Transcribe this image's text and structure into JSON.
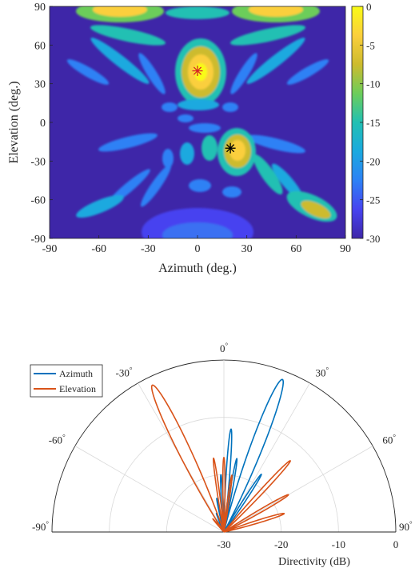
{
  "chart_data": [
    {
      "type": "heatmap",
      "xlabel": "Azimuth (deg.)",
      "ylabel": "Elevation (deg.)",
      "xlim": [
        -90,
        90
      ],
      "ylim": [
        -90,
        90
      ],
      "xticks": [
        "-90",
        "-60",
        "-30",
        "0",
        "30",
        "60",
        "90"
      ],
      "yticks": [
        "90",
        "60",
        "30",
        "0",
        "-30",
        "-60",
        "-90"
      ],
      "colorbar": {
        "range": [
          -30,
          0
        ],
        "ticks": [
          "0",
          "-5",
          "-10",
          "-15",
          "-20",
          "-25",
          "-30"
        ]
      },
      "colormap": [
        "#3e26a8",
        "#4743f0",
        "#2d81f5",
        "#1aa9df",
        "#21c0b3",
        "#6ccd5a",
        "#cdbb2e",
        "#fbcf3c",
        "#f9fb15"
      ],
      "markers": [
        {
          "azimuth": 0,
          "elevation": 40,
          "color": "#d62728"
        },
        {
          "azimuth": 20,
          "elevation": -20,
          "color": "#000000"
        }
      ]
    },
    {
      "type": "polar",
      "xlabel": "Directivity (dB)",
      "angle_ticks": [
        "-90",
        "-60",
        "-30",
        "0",
        "30",
        "60",
        "90"
      ],
      "radial_ticks": [
        "-30",
        "-20",
        "-10",
        "0"
      ],
      "rlim": [
        -30,
        0
      ],
      "series": [
        {
          "name": "Azimuth",
          "color": "#0072bd",
          "lobes": [
            {
              "angle": 21,
              "peak": -1.5,
              "width": 7.5
            },
            {
              "angle": 4,
              "peak": -12,
              "width": 3.5
            },
            {
              "angle": -3,
              "peak": -20,
              "width": 3.0
            },
            {
              "angle": 10,
              "peak": -17,
              "width": 3.0
            },
            {
              "angle": -12,
              "peak": -24,
              "width": 3.0
            },
            {
              "angle": 33,
              "peak": -18,
              "width": 3.5
            },
            {
              "angle": -22,
              "peak": -26.5,
              "width": 3.0
            },
            {
              "angle": -32,
              "peak": -27.5,
              "width": 3.0
            }
          ]
        },
        {
          "name": "Elevation",
          "color": "#d95319",
          "lobes": [
            {
              "angle": -26,
              "peak": -1.5,
              "width": 7.5
            },
            {
              "angle": -8,
              "peak": -17,
              "width": 3.0
            },
            {
              "angle": 0,
              "peak": -17,
              "width": 3.0
            },
            {
              "angle": 8,
              "peak": -20,
              "width": 3.0
            },
            {
              "angle": 43,
              "peak": -13,
              "width": 4.0
            },
            {
              "angle": 60,
              "peak": -17,
              "width": 4.0
            },
            {
              "angle": 73,
              "peak": -19,
              "width": 4.5
            },
            {
              "angle": -40,
              "peak": -27,
              "width": 3.0
            }
          ]
        }
      ],
      "legend": "top-left"
    }
  ]
}
